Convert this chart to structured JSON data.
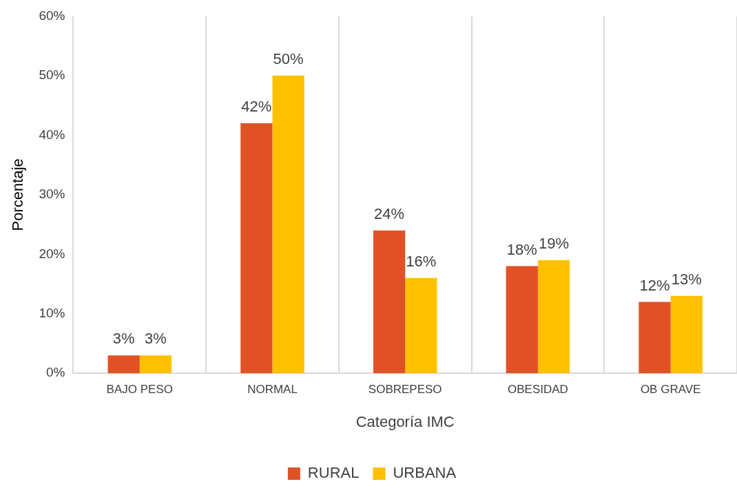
{
  "chart_data": {
    "type": "bar",
    "xlabel": "Categoría IMC",
    "ylabel": "Porcentaje",
    "categories": [
      "BAJO PESO",
      "NORMAL",
      "SOBREPESO",
      "OBESIDAD",
      "OB GRAVE"
    ],
    "series": [
      {
        "name": "RURAL",
        "color": "#e05226",
        "values": [
          3,
          42,
          24,
          18,
          12
        ],
        "value_labels": [
          "3%",
          "42%",
          "24%",
          "18%",
          "12%"
        ]
      },
      {
        "name": "URBANA",
        "color": "#ffc000",
        "values": [
          3,
          50,
          16,
          19,
          13
        ],
        "value_labels": [
          "3%",
          "50%",
          "16%",
          "19%",
          "13%"
        ]
      }
    ],
    "ylim": [
      0,
      60
    ],
    "yticks": [
      {
        "value": 0,
        "label": "0%"
      },
      {
        "value": 10,
        "label": "10%"
      },
      {
        "value": 20,
        "label": "20%"
      },
      {
        "value": 30,
        "label": "30%"
      },
      {
        "value": 40,
        "label": "40%"
      },
      {
        "value": 50,
        "label": "50%"
      },
      {
        "value": 60,
        "label": "60%"
      }
    ],
    "grid": "x",
    "legend": "bottom"
  }
}
